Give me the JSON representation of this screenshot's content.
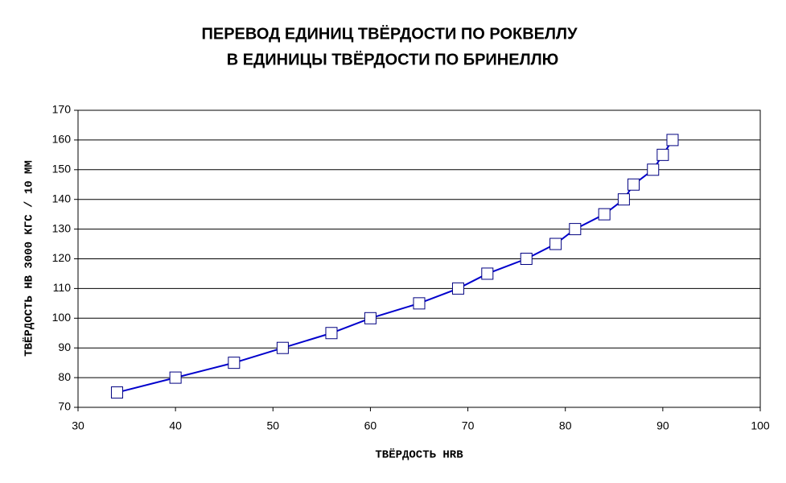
{
  "chart_data": {
    "type": "line",
    "title": [
      "ПЕРЕВОД ЕДИНИЦ ТВЁРДОСТИ ПО РОКВЕЛЛУ",
      "В ЕДИНИЦЫ ТВЁРДОСТИ ПО БРИНЕЛЛЮ"
    ],
    "x_label": "ТВЁРДОСТЬ HRB",
    "y_label": "ТВЁРДОСТЬ HB 3000 КГС / 10 ММ",
    "x": [
      34,
      40,
      46,
      51,
      56,
      60,
      65,
      69,
      72,
      76,
      79,
      81,
      84,
      86,
      87,
      89,
      90,
      91
    ],
    "series": [
      {
        "color": "#0000cc",
        "marker_color": "#000080",
        "values": [
          75,
          80,
          85,
          90,
          95,
          100,
          105,
          110,
          115,
          120,
          125,
          130,
          135,
          140,
          145,
          150,
          155,
          160
        ]
      }
    ],
    "xlim": [
      30,
      100
    ],
    "xticks": [
      30,
      40,
      50,
      60,
      70,
      80,
      90,
      100
    ],
    "ylim": [
      70,
      170
    ],
    "yticks": [
      70,
      80,
      90,
      100,
      110,
      120,
      130,
      140,
      150,
      160,
      170
    ],
    "grid": true
  }
}
